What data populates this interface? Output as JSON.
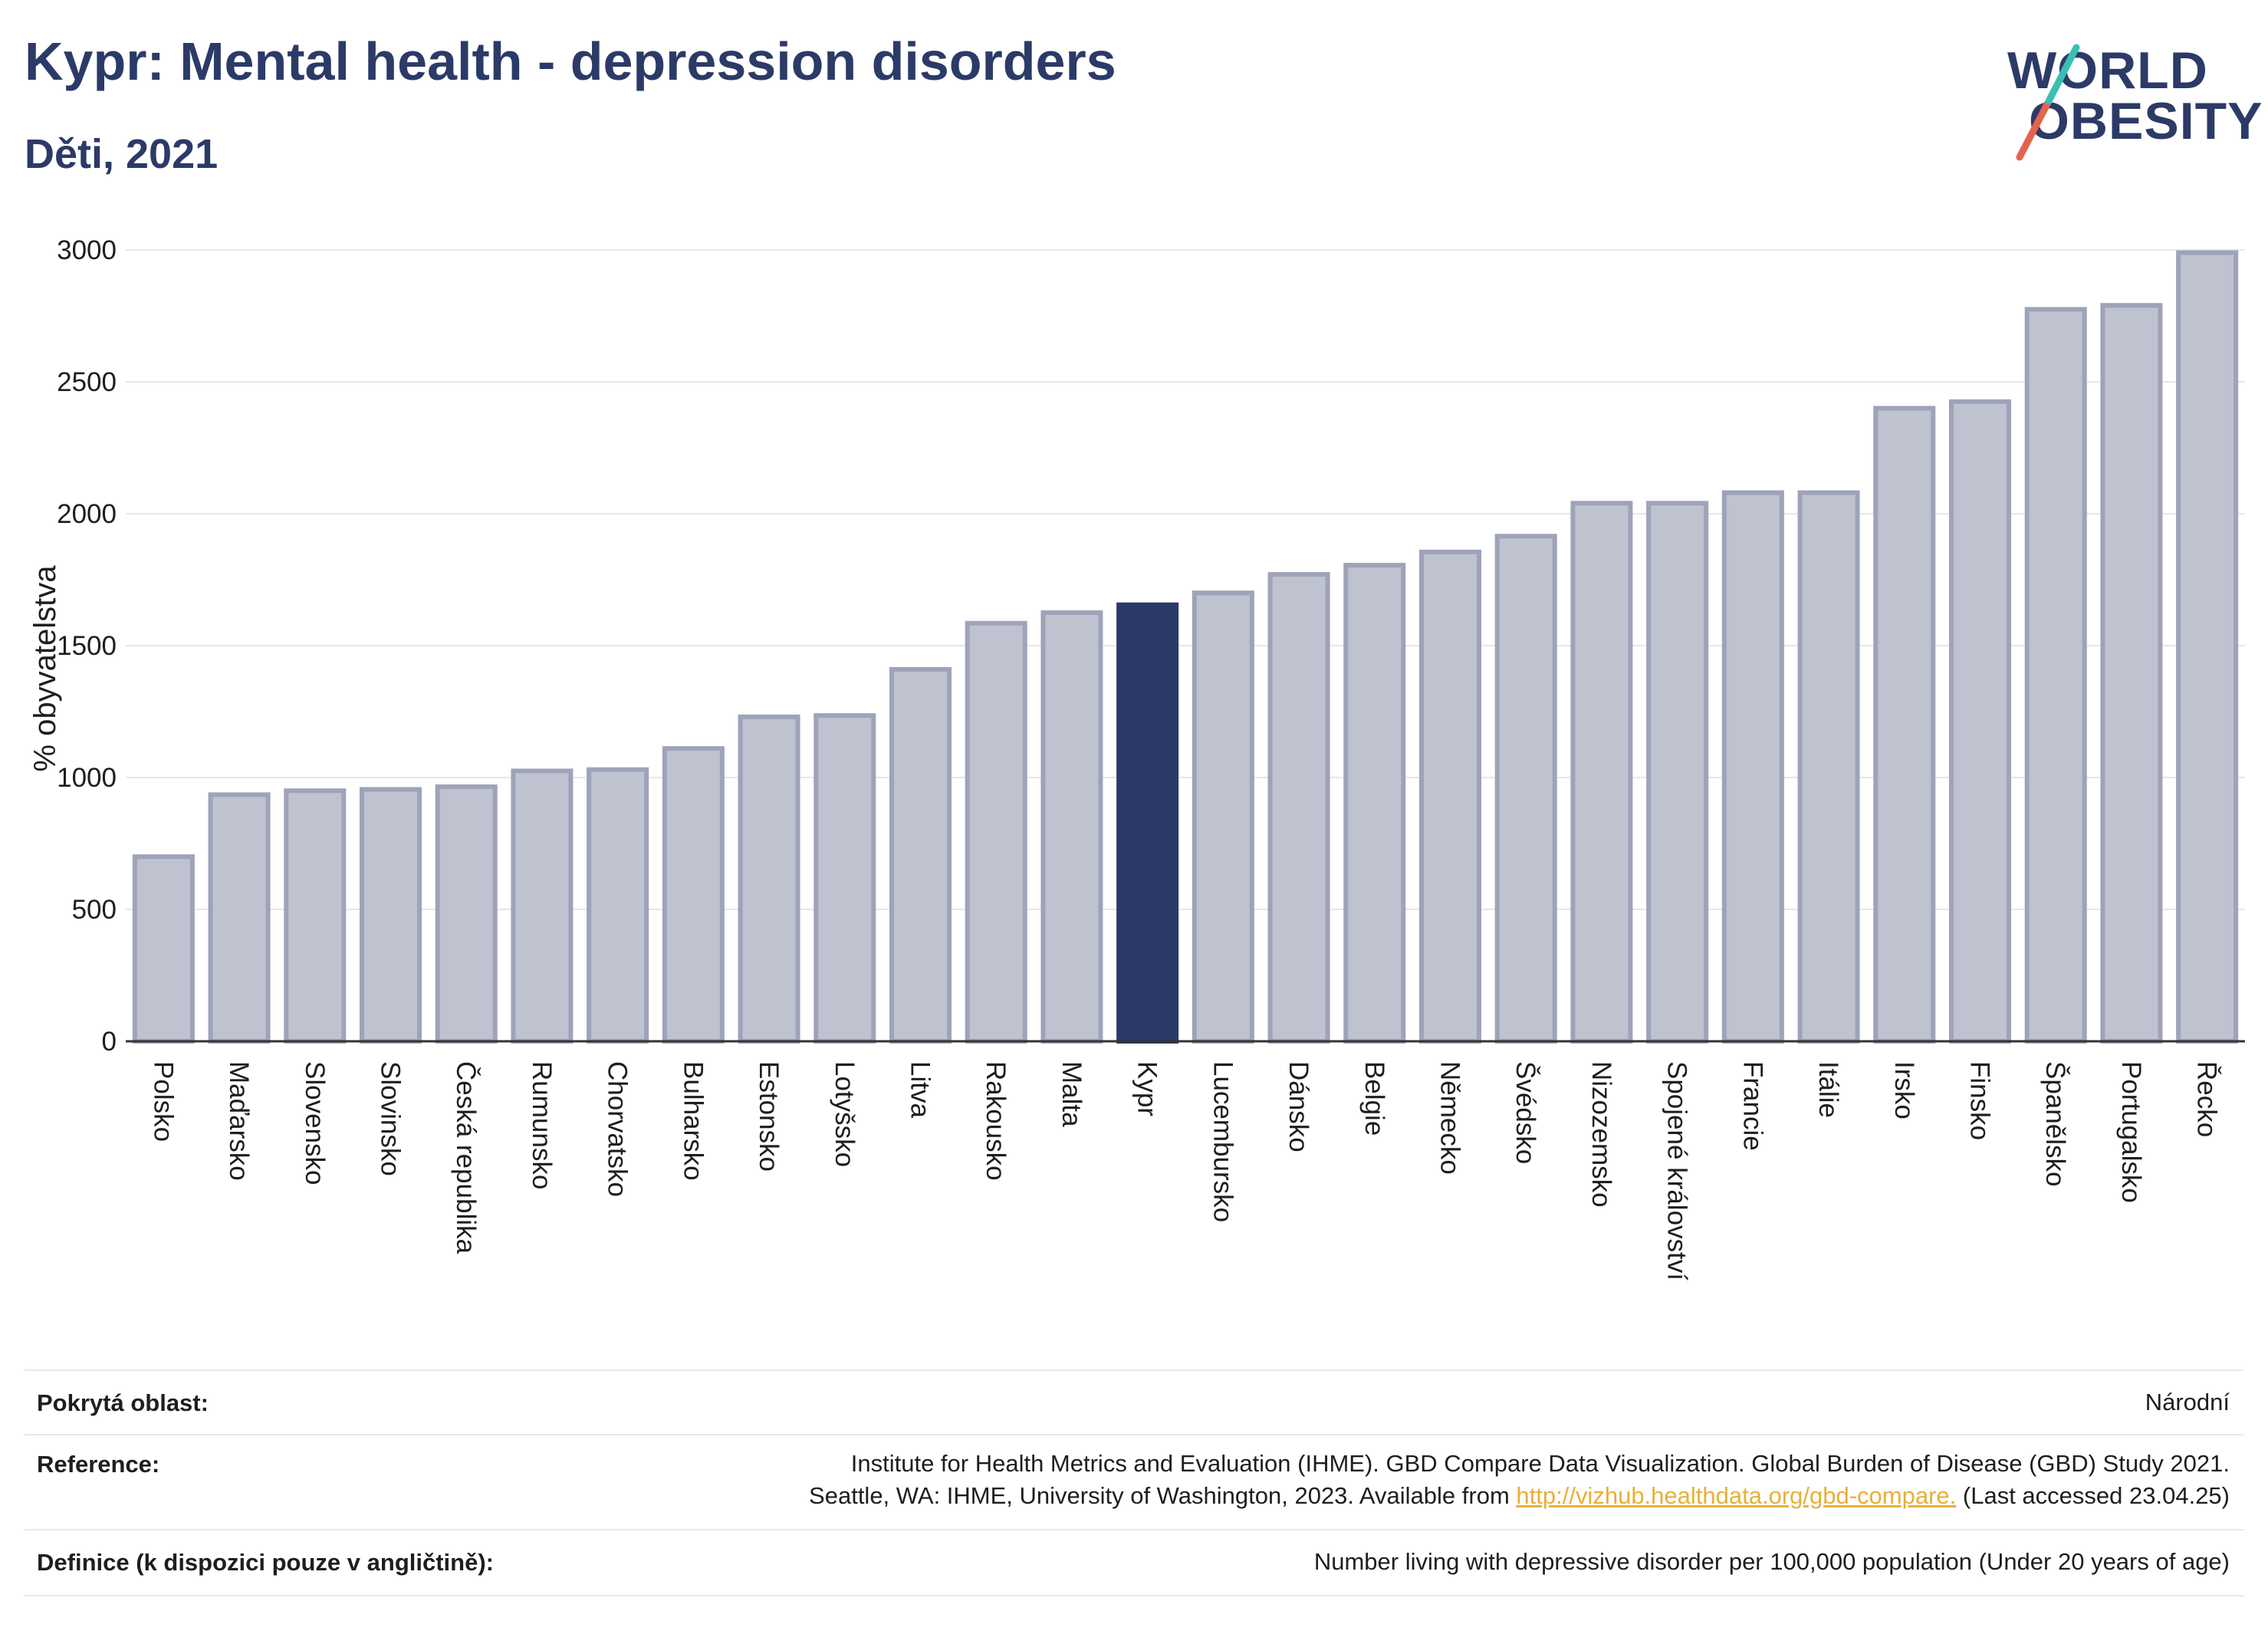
{
  "header": {
    "title": "Kypr: Mental health - depression disorders",
    "subtitle": "Děti, 2021"
  },
  "logo": {
    "line1": "WORLD",
    "line2": "OBESITY",
    "colors": [
      "#2b3a67",
      "#e2644d",
      "#3bbfb3"
    ]
  },
  "chart_data": {
    "type": "bar",
    "ylabel": "% obyvatelstva",
    "ylim": [
      0,
      3000
    ],
    "yticks": [
      0,
      500,
      1000,
      1500,
      2000,
      2500,
      3000
    ],
    "grid": true,
    "highlight": "Kypr",
    "colors": {
      "bar": "#bfc2cf",
      "bar_border": "#9ea3b9",
      "highlight": "#2b3a67",
      "grid": "#e6e6ec"
    },
    "categories": [
      "Polsko",
      "Maďarsko",
      "Slovensko",
      "Slovinsko",
      "Česká republika",
      "Rumunsko",
      "Chorvatsko",
      "Bulharsko",
      "Estonsko",
      "Lotyšsko",
      "Litva",
      "Rakousko",
      "Malta",
      "Kypr",
      "Lucembursko",
      "Dánsko",
      "Belgie",
      "Německo",
      "Švédsko",
      "Nizozemsko",
      "Spojené království",
      "Francie",
      "Itálie",
      "Irsko",
      "Finsko",
      "Španělsko",
      "Portugalsko",
      "Řecko"
    ],
    "values": [
      700,
      935,
      950,
      955,
      965,
      1025,
      1030,
      1110,
      1230,
      1235,
      1410,
      1585,
      1625,
      1655,
      1700,
      1770,
      1805,
      1855,
      1915,
      2040,
      2040,
      2080,
      2080,
      2400,
      2425,
      2775,
      2790,
      2990
    ]
  },
  "info": {
    "coverage_label": "Pokrytá oblast:",
    "coverage_value": "Národní",
    "reference_label": "Reference:",
    "reference_line1": "Institute for Health Metrics and Evaluation (IHME). GBD Compare Data Visualization. Global Burden of Disease (GBD) Study 2021.",
    "reference_line2_pre": "Seattle, WA: IHME, University of Washington, 2023. Available from ",
    "reference_link": "http://vizhub.healthdata.org/gbd-compare.",
    "reference_line2_post": " (Last accessed 23.04.25)",
    "definition_label": "Definice (k dispozici pouze v angličtině):",
    "definition_value": "Number living with depressive disorder per 100,000 population (Under 20 years of age)"
  }
}
